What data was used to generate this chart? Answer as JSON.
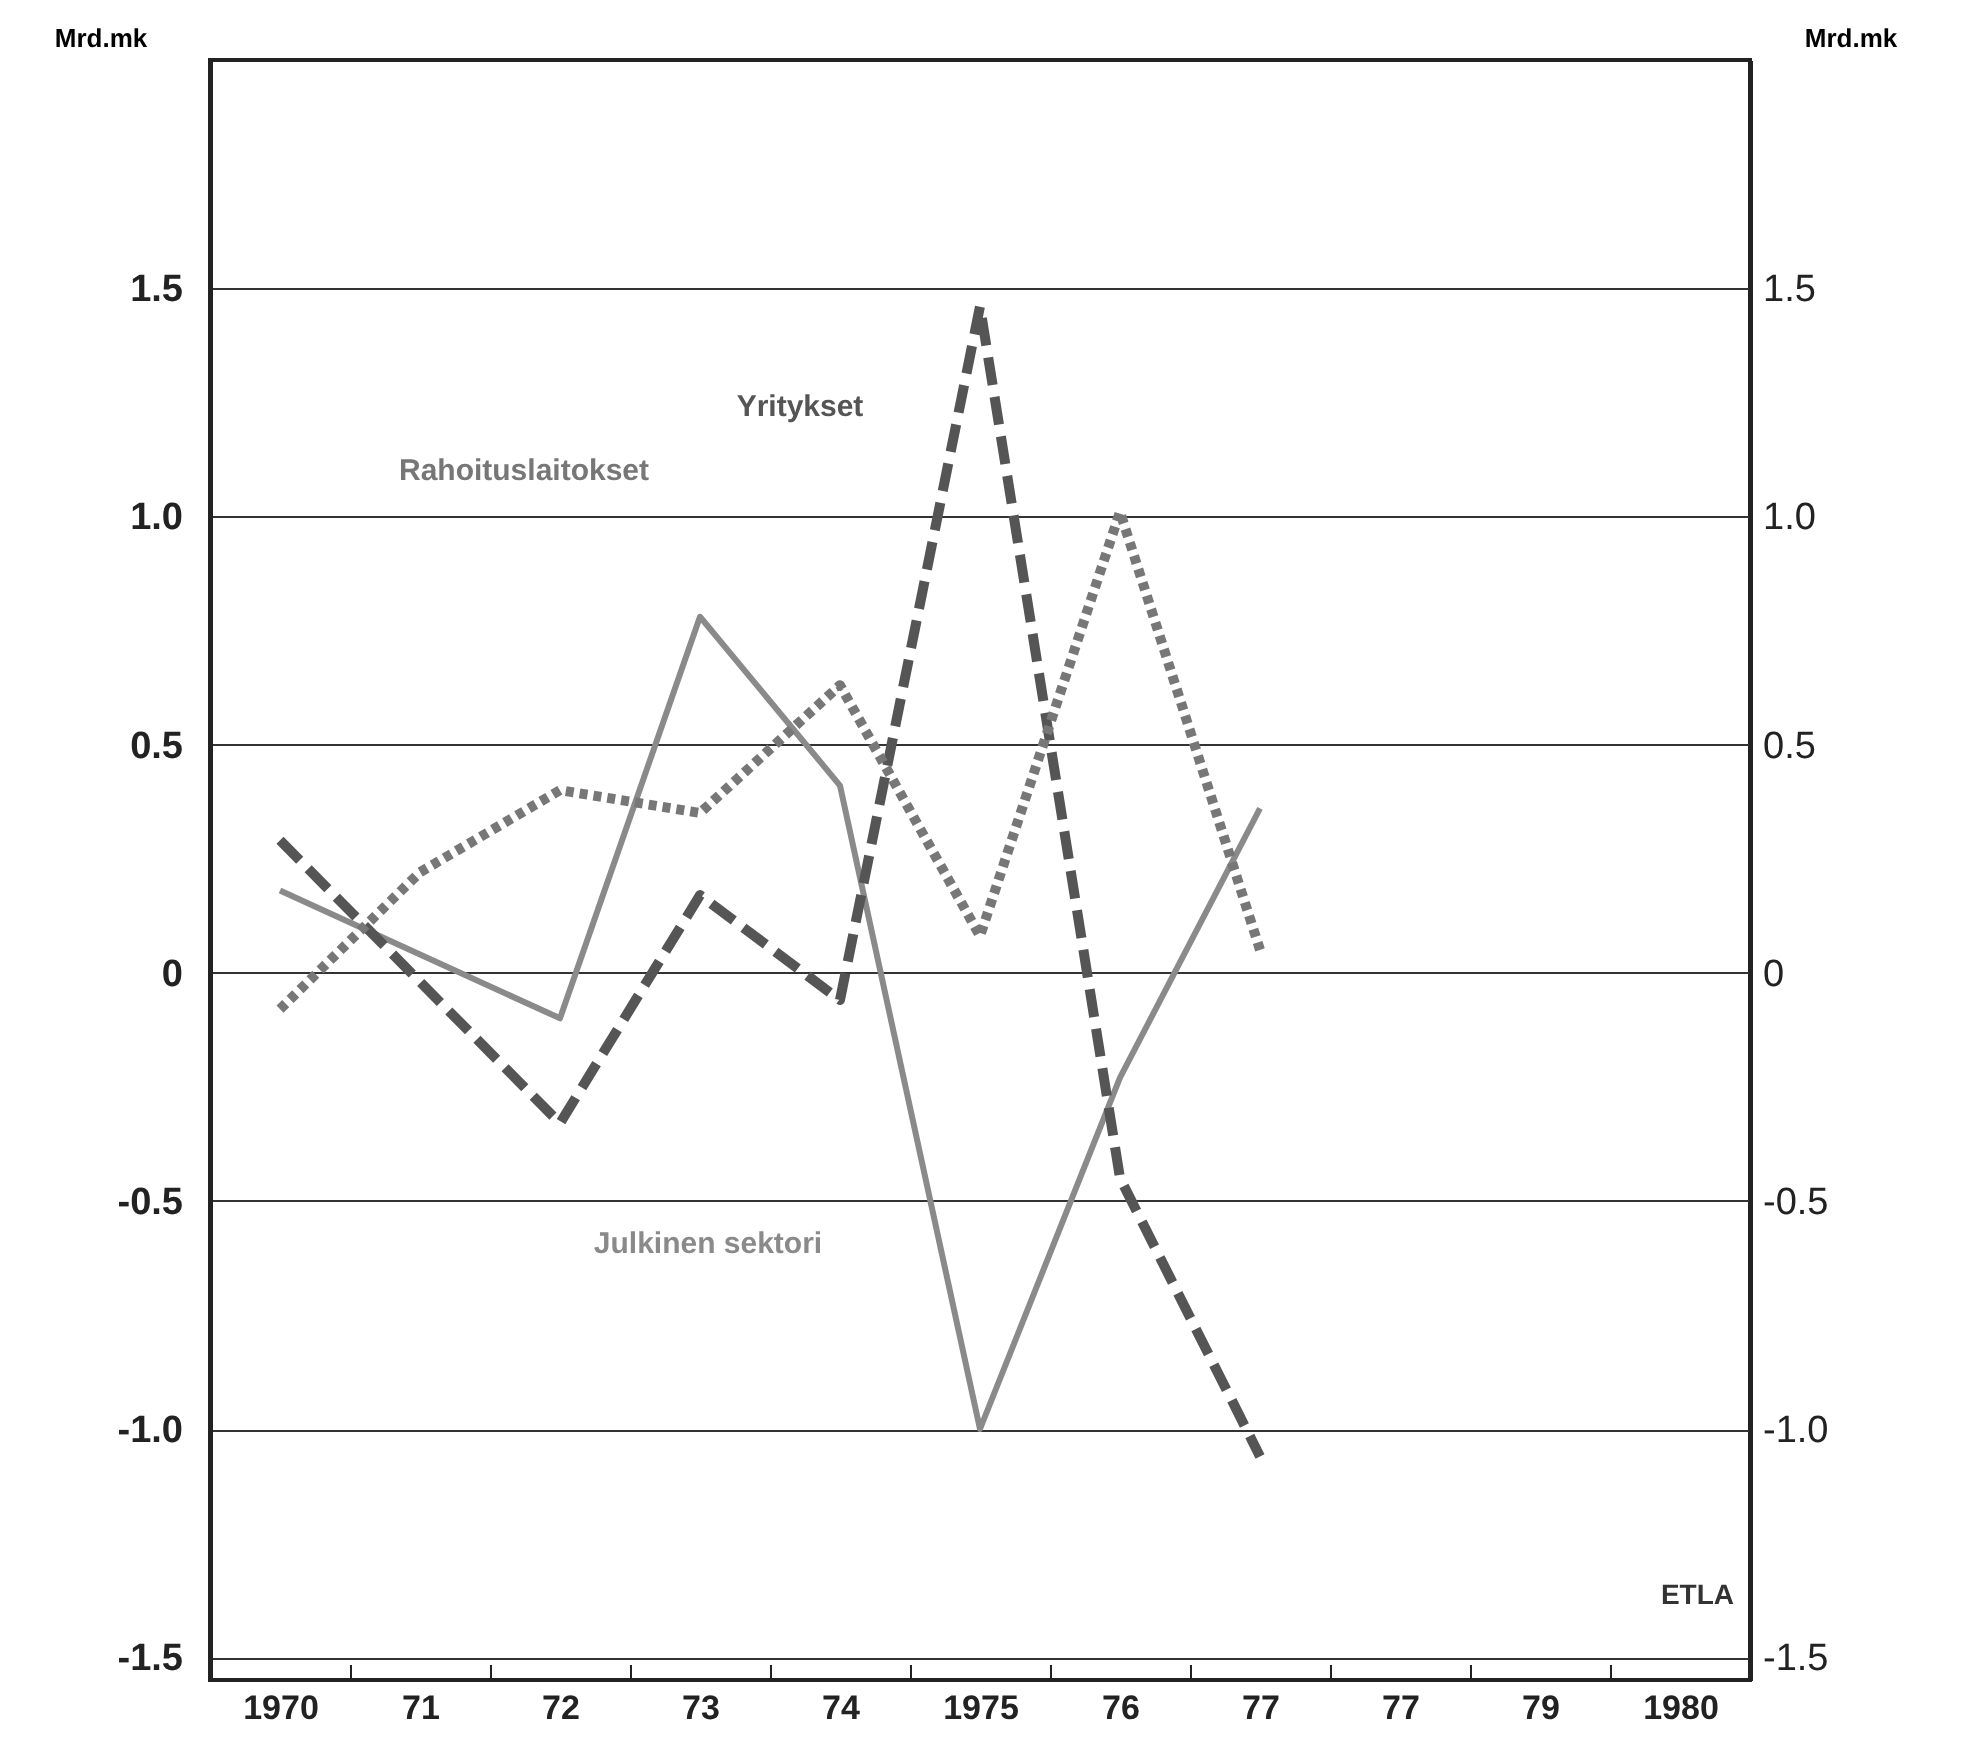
{
  "chart_data": {
    "type": "line",
    "ylabel": "Mrd.mk",
    "y2label": "Mrd.mk",
    "categories": [
      "1970",
      "71",
      "72",
      "73",
      "74",
      "1975",
      "76",
      "77",
      "77",
      "79",
      "1980"
    ],
    "ylim": [
      -1.55,
      2.0
    ],
    "yticks": [
      {
        "value": -1.5,
        "label": "-1.5"
      },
      {
        "value": -1.0,
        "label": "-1.0"
      },
      {
        "value": -0.5,
        "label": "-0.5"
      },
      {
        "value": 0,
        "label": "0"
      },
      {
        "value": 0.5,
        "label": "0.5"
      },
      {
        "value": 1.0,
        "label": "1.0"
      },
      {
        "value": 1.5,
        "label": "1.5"
      }
    ],
    "y2lim": [
      -1.55,
      2.0
    ],
    "y2ticks": [
      {
        "value": -1.5,
        "label": "-1.5"
      },
      {
        "value": -1.0,
        "label": "-1.0"
      },
      {
        "value": -0.5,
        "label": "-0.5"
      },
      {
        "value": 0,
        "label": "0"
      },
      {
        "value": 0.5,
        "label": "0.5"
      },
      {
        "value": 1.0,
        "label": "1.0"
      },
      {
        "value": 1.5,
        "label": "1.5"
      }
    ],
    "grid": "y",
    "marker": "none",
    "series": [
      {
        "name": "Julkinen sektori",
        "color": "#8a8a8a",
        "line_style": "solid",
        "values": [
          0.18,
          0.04,
          -0.1,
          0.78,
          0.41,
          -1.0,
          -0.23,
          0.36,
          null,
          null,
          null
        ]
      },
      {
        "name": "Yritykset",
        "color": "#555555",
        "line_style": "dashed",
        "values": [
          0.29,
          -0.02,
          -0.33,
          0.17,
          -0.06,
          1.46,
          -0.45,
          -1.06,
          null,
          null,
          null
        ]
      },
      {
        "name": "Rahoituslaitokset",
        "color": "#777777",
        "line_style": "dotted",
        "values": [
          -0.08,
          0.22,
          0.4,
          0.35,
          0.63,
          0.08,
          1.01,
          0.05,
          null,
          null,
          null
        ]
      }
    ],
    "annotations": [
      "ETLA"
    ]
  }
}
